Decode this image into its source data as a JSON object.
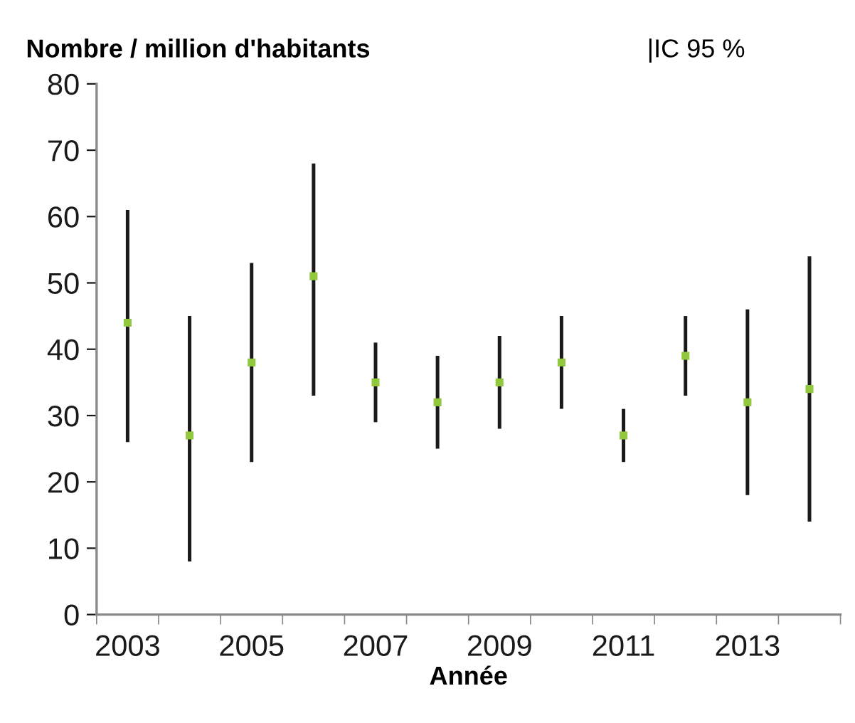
{
  "chart_data": {
    "type": "scatter",
    "ylabel": "Nombre / million d'habitants",
    "xlabel": "Année",
    "annotations": [
      "|IC 95 %"
    ],
    "categories": [
      "2003",
      null,
      "2005",
      null,
      "2007",
      null,
      "2009",
      null,
      "2011",
      null,
      "2013",
      null
    ],
    "series": [
      {
        "color": "#92c83e",
        "values": [
          44,
          27,
          38,
          51,
          35,
          32,
          35,
          38,
          27,
          39,
          32,
          34
        ],
        "errors": [
          [
            26,
            61
          ],
          [
            8,
            45
          ],
          [
            23,
            53
          ],
          [
            33,
            68
          ],
          [
            29,
            41
          ],
          [
            25,
            39
          ],
          [
            28,
            42
          ],
          [
            31,
            45
          ],
          [
            23,
            31
          ],
          [
            33,
            45
          ],
          [
            18,
            46
          ],
          [
            14,
            54
          ]
        ]
      }
    ],
    "marker": "square",
    "ylim": [
      0,
      80
    ],
    "yticks": [
      0,
      10,
      20,
      30,
      40,
      50,
      60,
      70,
      80
    ],
    "grid": false,
    "legend": false
  }
}
